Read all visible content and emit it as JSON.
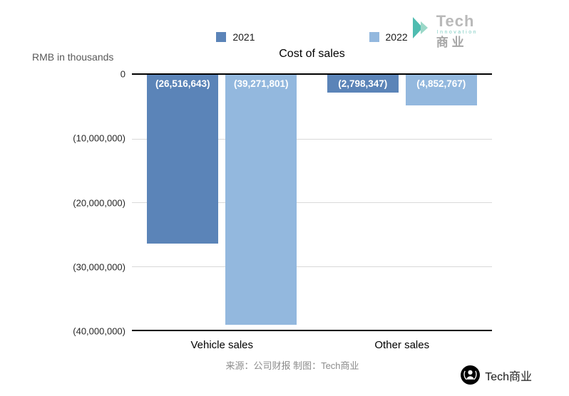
{
  "meta": {
    "source_note": "来源：公司财报 制图：Tech商业"
  },
  "brand": {
    "name": "Tech",
    "subtitle": "Innovation",
    "cn": "商业",
    "accent_teal": "#4fbcb0",
    "accent_teal_light": "#9bd8c8",
    "gray": "#b9b9b9"
  },
  "footer": {
    "brand": "Tech商业"
  },
  "chart_data": {
    "type": "bar",
    "title": "Cost of sales",
    "ylabel": "RMB in thousands",
    "categories": [
      "Vehicle sales",
      "Other sales"
    ],
    "series": [
      {
        "name": "2021",
        "color": "#5b84b8",
        "values": [
          -26516643,
          -2798347
        ],
        "labels": [
          "(26,516,643)",
          "(2,798,347)"
        ]
      },
      {
        "name": "2022",
        "color": "#93b8de",
        "values": [
          -39271801,
          -4852767
        ],
        "labels": [
          "(39,271,801)",
          "(4,852,767)"
        ]
      }
    ],
    "ylim": [
      -40000000,
      0
    ],
    "yticks": [
      {
        "value": 0,
        "label": "0"
      },
      {
        "value": -10000000,
        "label": "(10,000,000)"
      },
      {
        "value": -20000000,
        "label": "(20,000,000)"
      },
      {
        "value": -30000000,
        "label": "(30,000,000)"
      },
      {
        "value": -40000000,
        "label": "(40,000,000)"
      }
    ],
    "legend_position": "top",
    "grid": true,
    "bar_label_color": "#ffffff"
  }
}
